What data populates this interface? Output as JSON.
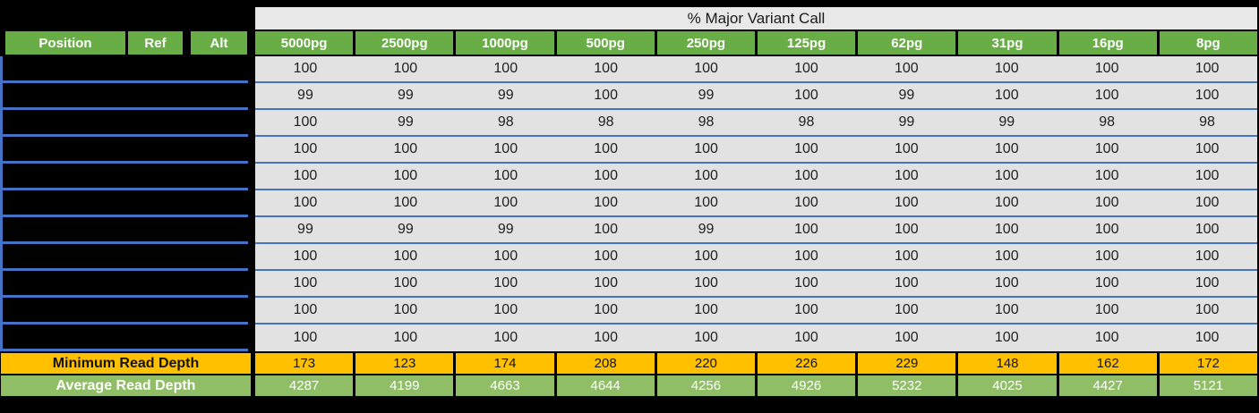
{
  "chart_data": {
    "type": "table",
    "title": "% Major Variant Call",
    "key_columns": [
      "Position",
      "Ref",
      "Alt"
    ],
    "key_cells_redacted": true,
    "sample_columns": [
      "5000pg",
      "2500pg",
      "1000pg",
      "500pg",
      "250pg",
      "125pg",
      "62pg",
      "31pg",
      "16pg",
      "8pg"
    ],
    "percent_major_variant_rows": [
      [
        100,
        100,
        100,
        100,
        100,
        100,
        100,
        100,
        100,
        100
      ],
      [
        99,
        99,
        99,
        100,
        99,
        100,
        99,
        100,
        100,
        100
      ],
      [
        100,
        99,
        98,
        98,
        98,
        98,
        99,
        99,
        98,
        98
      ],
      [
        100,
        100,
        100,
        100,
        100,
        100,
        100,
        100,
        100,
        100
      ],
      [
        100,
        100,
        100,
        100,
        100,
        100,
        100,
        100,
        100,
        100
      ],
      [
        100,
        100,
        100,
        100,
        100,
        100,
        100,
        100,
        100,
        100
      ],
      [
        99,
        99,
        99,
        100,
        99,
        100,
        100,
        100,
        100,
        100
      ],
      [
        100,
        100,
        100,
        100,
        100,
        100,
        100,
        100,
        100,
        100
      ],
      [
        100,
        100,
        100,
        100,
        100,
        100,
        100,
        100,
        100,
        100
      ],
      [
        100,
        100,
        100,
        100,
        100,
        100,
        100,
        100,
        100,
        100
      ],
      [
        100,
        100,
        100,
        100,
        100,
        100,
        100,
        100,
        100,
        100
      ]
    ],
    "min_read_depth": {
      "label": "Minimum Read Depth",
      "values": [
        173,
        123,
        174,
        208,
        220,
        226,
        229,
        148,
        162,
        172
      ]
    },
    "avg_read_depth": {
      "label": "Average Read Depth",
      "values": [
        4287,
        4199,
        4663,
        4644,
        4256,
        4926,
        5232,
        4025,
        4427,
        5121
      ]
    }
  },
  "colors": {
    "background": "#000000",
    "header_green": "#69AD47",
    "band_gray": "#E8E8E8",
    "row_gray": "#E2E2E2",
    "separator_blue": "#4472C4",
    "min_orange": "#FFC000",
    "avg_green": "#8FBE66"
  }
}
